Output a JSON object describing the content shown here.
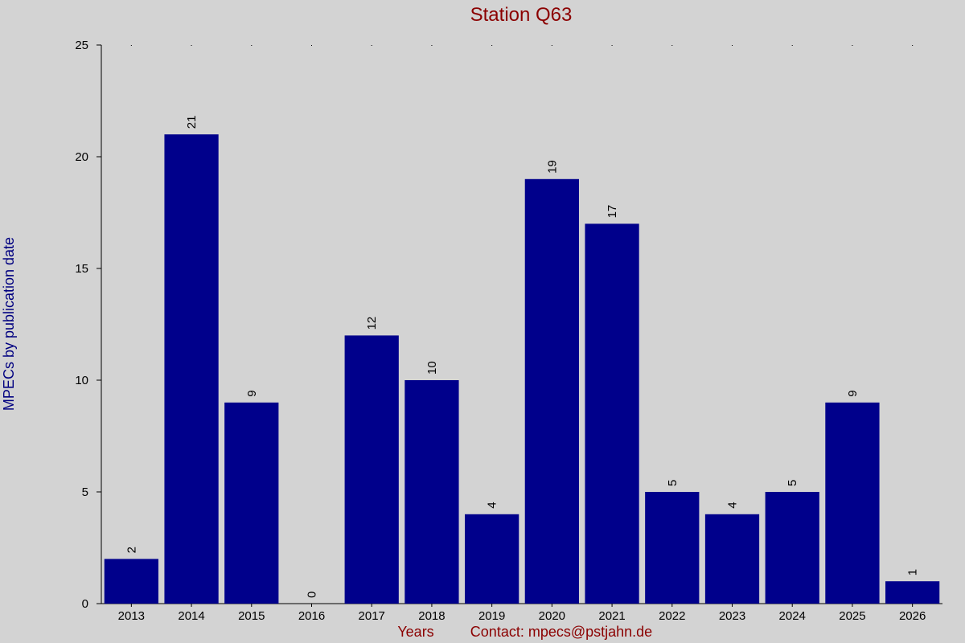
{
  "chart_data": {
    "type": "bar",
    "title": "Station Q63",
    "xlabel": "Years",
    "ylabel": "MPECs by publication date",
    "footer_text": "Contact: mpecs@pstjahn.de",
    "categories": [
      "2013",
      "2014",
      "2015",
      "2016",
      "2017",
      "2018",
      "2019",
      "2020",
      "2021",
      "2022",
      "2023",
      "2024",
      "2025",
      "2026"
    ],
    "values": [
      2,
      21,
      9,
      0,
      12,
      10,
      4,
      19,
      17,
      5,
      4,
      5,
      9,
      1
    ],
    "ylim": [
      0,
      25
    ],
    "yticks": [
      0,
      5,
      10,
      15,
      20,
      25
    ],
    "data_labels": true,
    "grid": false,
    "legend": "none",
    "colors": {
      "bar": "#00008b",
      "background": "#d3d3d3",
      "title": "#8b0000",
      "ylabel": "#000080",
      "xlabel": "#8b0000"
    }
  }
}
